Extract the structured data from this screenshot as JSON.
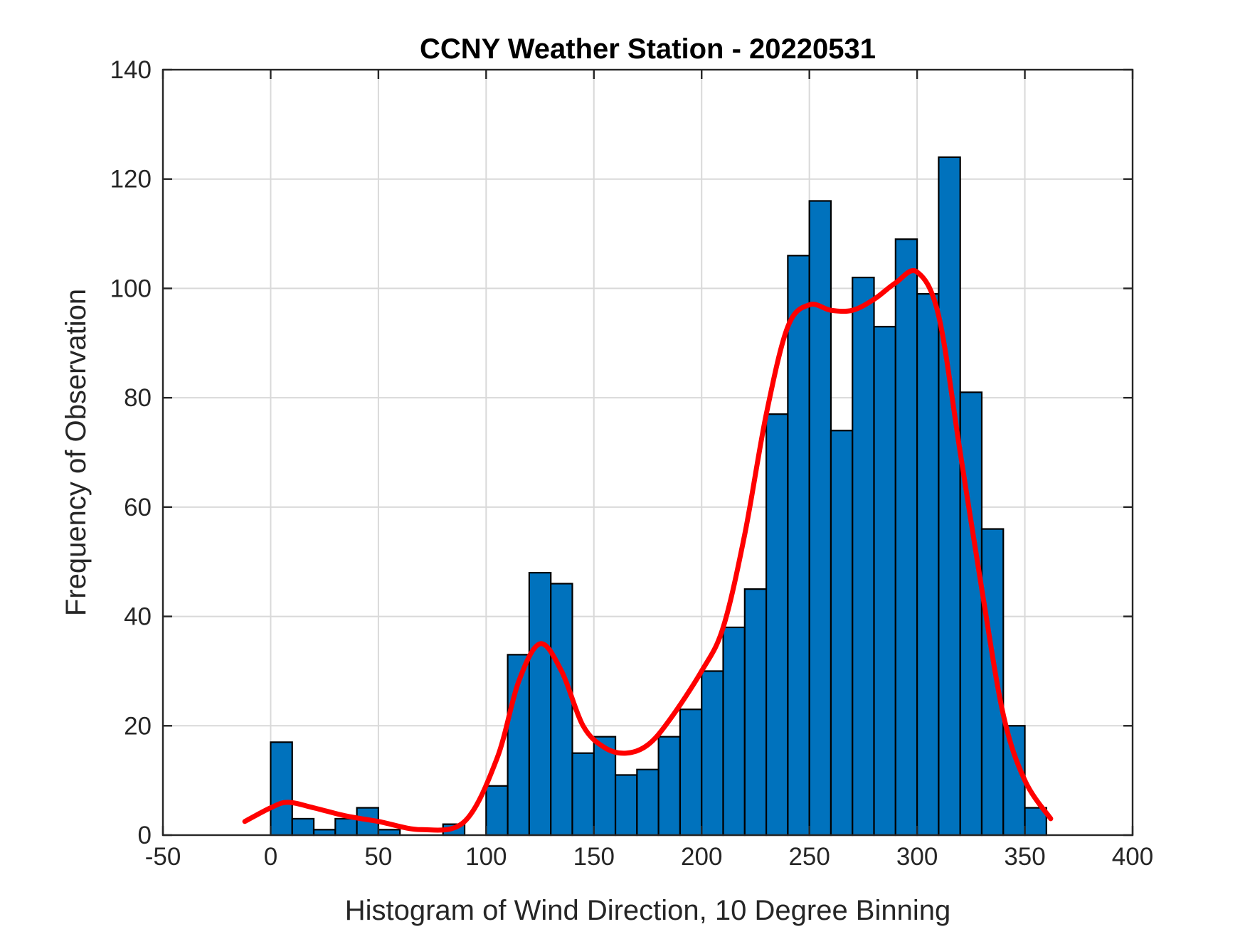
{
  "chart_data": {
    "type": "bar",
    "title": "CCNY Weather Station - 20220531",
    "xlabel": "Histogram of Wind Direction, 10 Degree Binning",
    "ylabel": "Frequency of Observation",
    "xlim": [
      -50,
      400
    ],
    "ylim": [
      0,
      140
    ],
    "xticks": [
      -50,
      0,
      50,
      100,
      150,
      200,
      250,
      300,
      350,
      400
    ],
    "yticks": [
      0,
      20,
      40,
      60,
      80,
      100,
      120,
      140
    ],
    "grid": true,
    "bin_width": 10,
    "bins": [
      {
        "start": 0,
        "count": 17
      },
      {
        "start": 10,
        "count": 3
      },
      {
        "start": 20,
        "count": 1
      },
      {
        "start": 30,
        "count": 3
      },
      {
        "start": 40,
        "count": 5
      },
      {
        "start": 50,
        "count": 1
      },
      {
        "start": 60,
        "count": 0
      },
      {
        "start": 70,
        "count": 0
      },
      {
        "start": 80,
        "count": 2
      },
      {
        "start": 90,
        "count": 0
      },
      {
        "start": 100,
        "count": 9
      },
      {
        "start": 110,
        "count": 33
      },
      {
        "start": 120,
        "count": 48
      },
      {
        "start": 130,
        "count": 46
      },
      {
        "start": 140,
        "count": 15
      },
      {
        "start": 150,
        "count": 18
      },
      {
        "start": 160,
        "count": 11
      },
      {
        "start": 170,
        "count": 12
      },
      {
        "start": 180,
        "count": 18
      },
      {
        "start": 190,
        "count": 23
      },
      {
        "start": 200,
        "count": 30
      },
      {
        "start": 210,
        "count": 38
      },
      {
        "start": 220,
        "count": 45
      },
      {
        "start": 230,
        "count": 77
      },
      {
        "start": 240,
        "count": 106
      },
      {
        "start": 250,
        "count": 116
      },
      {
        "start": 260,
        "count": 74
      },
      {
        "start": 270,
        "count": 102
      },
      {
        "start": 280,
        "count": 93
      },
      {
        "start": 290,
        "count": 109
      },
      {
        "start": 300,
        "count": 99
      },
      {
        "start": 310,
        "count": 124
      },
      {
        "start": 320,
        "count": 81
      },
      {
        "start": 330,
        "count": 56
      },
      {
        "start": 340,
        "count": 20
      },
      {
        "start": 350,
        "count": 5
      }
    ],
    "kde_curve": {
      "x": [
        -12,
        0,
        8,
        20,
        35,
        50,
        70,
        90,
        105,
        115,
        125,
        135,
        145,
        155,
        165,
        175,
        185,
        200,
        210,
        220,
        230,
        240,
        250,
        260,
        270,
        280,
        290,
        300,
        310,
        320,
        330,
        340,
        350,
        362
      ],
      "y": [
        2.5,
        5,
        6,
        5,
        3.5,
        2.5,
        1,
        2.5,
        14,
        28,
        35,
        30,
        20,
        16,
        15,
        16.5,
        21,
        30,
        38,
        55,
        77,
        93,
        97,
        96,
        96,
        98,
        101,
        103,
        95,
        70,
        45,
        22,
        10,
        3
      ]
    },
    "colors": {
      "bars": "#0072bd",
      "curve": "#ff0000",
      "grid": "#d9d9d9",
      "axes": "#262626"
    }
  }
}
